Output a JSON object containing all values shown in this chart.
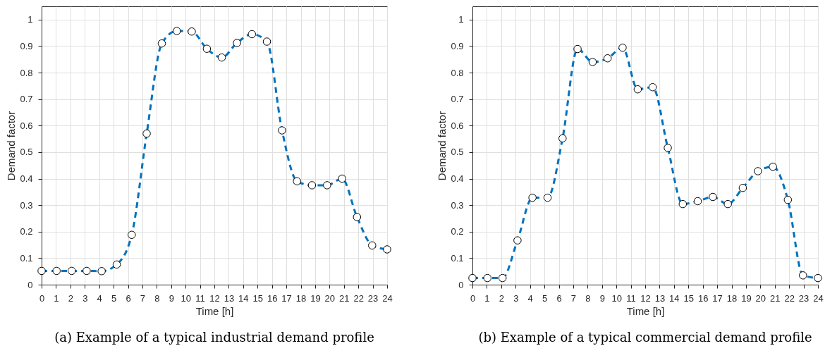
{
  "chart_data": [
    {
      "type": "line",
      "xlabel": "Time [h]",
      "ylabel": "Demand factor",
      "annotations": [
        "(a) Example of a typical industrial demand profile"
      ],
      "x": [
        0,
        1.04,
        2.09,
        3.13,
        4.17,
        5.22,
        6.26,
        7.3,
        8.35,
        9.39,
        10.43,
        11.48,
        12.52,
        13.57,
        14.61,
        15.65,
        16.7,
        17.74,
        18.78,
        19.83,
        20.87,
        21.91,
        22.96,
        24
      ],
      "series": [
        {
          "color": "#0072bd",
          "values": [
            0.052,
            0.052,
            0.052,
            0.052,
            0.051,
            0.076,
            0.188,
            0.57,
            0.91,
            0.957,
            0.955,
            0.89,
            0.857,
            0.912,
            0.945,
            0.917,
            0.582,
            0.39,
            0.375,
            0.375,
            0.4,
            0.255,
            0.148,
            0.133
          ]
        }
      ],
      "xlim": [
        0,
        24
      ],
      "xticks": [
        0,
        1,
        2,
        3,
        4,
        5,
        6,
        7,
        8,
        9,
        10,
        11,
        12,
        13,
        14,
        15,
        16,
        17,
        18,
        19,
        20,
        21,
        22,
        23,
        24
      ],
      "ylim": [
        0,
        1.05
      ],
      "yticks": [
        0,
        0.1,
        0.2,
        0.3,
        0.4,
        0.5,
        0.6,
        0.7,
        0.8,
        0.9,
        1
      ],
      "grid": true,
      "marker": "circle",
      "line_style": "dashed"
    },
    {
      "type": "line",
      "xlabel": "Time [h]",
      "ylabel": "Demand factor",
      "annotations": [
        "(b) Example of a typical commercial demand profile"
      ],
      "x": [
        0,
        1.04,
        2.09,
        3.13,
        4.17,
        5.22,
        6.26,
        7.3,
        8.35,
        9.39,
        10.43,
        11.48,
        12.52,
        13.57,
        14.61,
        15.65,
        16.7,
        17.74,
        18.78,
        19.83,
        20.87,
        21.91,
        22.96,
        24
      ],
      "series": [
        {
          "color": "#0072bd",
          "values": [
            0.025,
            0.025,
            0.025,
            0.167,
            0.328,
            0.328,
            0.552,
            0.889,
            0.84,
            0.854,
            0.894,
            0.737,
            0.745,
            0.516,
            0.304,
            0.315,
            0.331,
            0.304,
            0.365,
            0.428,
            0.445,
            0.32,
            0.035,
            0.025
          ]
        }
      ],
      "xlim": [
        0,
        24
      ],
      "xticks": [
        0,
        1,
        2,
        3,
        4,
        5,
        6,
        7,
        8,
        9,
        10,
        11,
        12,
        13,
        14,
        15,
        16,
        17,
        18,
        19,
        20,
        21,
        22,
        23,
        24
      ],
      "ylim": [
        0,
        1.05
      ],
      "yticks": [
        0,
        0.1,
        0.2,
        0.3,
        0.4,
        0.5,
        0.6,
        0.7,
        0.8,
        0.9,
        1
      ],
      "grid": true,
      "marker": "circle",
      "line_style": "dashed"
    }
  ]
}
